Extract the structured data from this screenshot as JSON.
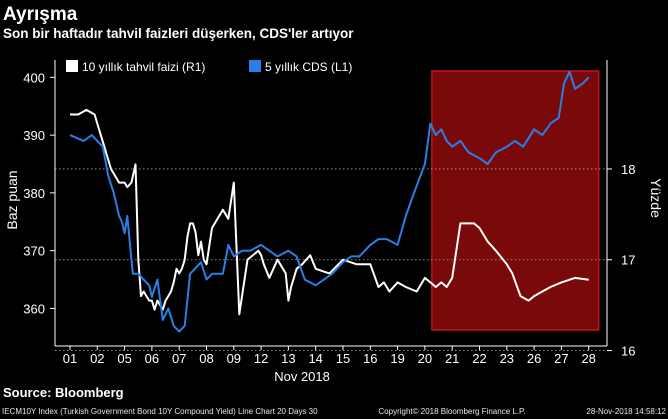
{
  "title": "Ayrışma",
  "subtitle": "Son bir haftadır tahvil faizleri düşerken, CDS'ler artıyor",
  "source": "Source: Bloomberg",
  "footer": {
    "left": "IECM10Y Index (Turkish Government Bond 10Y Compound Yield) Line Chart 20 Days 30",
    "middle": "Copyright© 2018 Bloomberg Finance L.P.",
    "right": "28-Nov-2018 14:58:12"
  },
  "colors": {
    "background": "#000000",
    "yield_line": "#ffffff",
    "cds_line": "#2a7fe6",
    "highlight_fill": "#7a0a0a",
    "highlight_border": "#c0151c"
  },
  "chart_data": {
    "type": "line",
    "title": "",
    "xlabel": "Nov 2018",
    "left_axis": {
      "label": "Baz puan",
      "ylim": [
        353.5,
        403
      ],
      "ticks": [
        360,
        370,
        380,
        390,
        400
      ]
    },
    "right_axis": {
      "label": "Yüzde",
      "ylim": [
        16.05,
        19.2
      ],
      "ticks": [
        16,
        17,
        18
      ]
    },
    "categories": [
      "01",
      "02",
      "05",
      "06",
      "07",
      "08",
      "09",
      "12",
      "13",
      "14",
      "15",
      "16",
      "19",
      "20",
      "21",
      "22",
      "23",
      "26",
      "27",
      "28"
    ],
    "legend": [
      "10 yıllık tahvil faizi (R1)",
      "5 yıllık CDS (L1)"
    ],
    "legend_position": "top-left",
    "highlight": {
      "from": "20",
      "to": "28"
    },
    "series": [
      {
        "name": "10 yıllık tahvil faizi (R1)",
        "axis": "right",
        "color": "#ffffff",
        "x": [
          0,
          0.3,
          0.6,
          0.9,
          1.0,
          1.2,
          1.5,
          1.8,
          2.0,
          2.1,
          2.25,
          2.4,
          2.5,
          2.6,
          2.7,
          2.8,
          2.9,
          3.0,
          3.1,
          3.2,
          3.3,
          3.4,
          3.5,
          3.6,
          3.7,
          3.8,
          3.9,
          4.0,
          4.1,
          4.2,
          4.3,
          4.4,
          4.5,
          4.6,
          4.7,
          4.8,
          4.9,
          5.0,
          5.2,
          5.4,
          5.6,
          5.7,
          5.8,
          6.0,
          6.2,
          6.5,
          6.9,
          7.0,
          7.1,
          7.3,
          7.6,
          7.9,
          8.0,
          8.1,
          8.3,
          8.5,
          8.8,
          9.0,
          9.5,
          10.0,
          10.5,
          11.0,
          11.3,
          11.5,
          11.7,
          12.0,
          12.3,
          12.7,
          12.9,
          13.0,
          13.2,
          13.4,
          13.6,
          13.8,
          14.0,
          14.3,
          14.6,
          14.8,
          15.0,
          15.3,
          15.6,
          16.0,
          16.2,
          16.5,
          16.8,
          17.0,
          17.3,
          17.6,
          18.0,
          18.5,
          19.0
        ],
        "y": [
          18.6,
          18.6,
          18.65,
          18.6,
          18.5,
          18.3,
          18.0,
          17.85,
          17.85,
          17.8,
          17.85,
          18.05,
          17.0,
          16.6,
          16.65,
          16.6,
          16.55,
          16.55,
          16.45,
          16.55,
          16.5,
          16.45,
          16.55,
          16.6,
          16.65,
          16.75,
          16.9,
          16.85,
          16.9,
          17.0,
          17.25,
          17.4,
          17.4,
          17.3,
          17.05,
          17.2,
          17.0,
          16.95,
          17.35,
          17.45,
          17.55,
          17.5,
          17.45,
          17.85,
          16.4,
          17.0,
          17.1,
          17.05,
          16.95,
          16.8,
          17.0,
          16.85,
          16.55,
          16.7,
          16.9,
          16.95,
          17.05,
          16.9,
          16.85,
          17.0,
          16.95,
          16.95,
          16.7,
          16.75,
          16.65,
          16.75,
          16.7,
          16.65,
          16.75,
          16.8,
          16.75,
          16.7,
          16.75,
          16.7,
          16.8,
          17.4,
          17.4,
          17.4,
          17.35,
          17.2,
          17.1,
          16.95,
          16.85,
          16.6,
          16.55,
          16.6,
          16.65,
          16.7,
          16.75,
          16.8,
          16.78
        ]
      },
      {
        "name": "5 yıllık CDS (L1)",
        "axis": "left",
        "color": "#2a7fe6",
        "x": [
          0,
          0.5,
          0.8,
          1.0,
          1.2,
          1.4,
          1.6,
          1.8,
          1.9,
          2.0,
          2.1,
          2.3,
          2.5,
          2.7,
          2.9,
          3.0,
          3.2,
          3.4,
          3.6,
          3.8,
          4.0,
          4.2,
          4.4,
          4.6,
          4.8,
          5.0,
          5.2,
          5.4,
          5.6,
          5.8,
          6.0,
          6.3,
          6.6,
          7.0,
          7.3,
          7.6,
          8.0,
          8.3,
          8.6,
          9.0,
          9.3,
          9.6,
          10.0,
          10.3,
          10.6,
          11.0,
          11.3,
          11.6,
          12.0,
          12.3,
          12.6,
          13.0,
          13.2,
          13.4,
          13.6,
          13.8,
          14.0,
          14.3,
          14.6,
          15.0,
          15.3,
          15.6,
          16.0,
          16.3,
          16.6,
          17.0,
          17.3,
          17.6,
          17.9,
          18.1,
          18.3,
          18.5,
          18.8,
          19.0
        ],
        "y": [
          390,
          389,
          390,
          389,
          388,
          383,
          380,
          376,
          375,
          373,
          376,
          366,
          366,
          365,
          364,
          362,
          365,
          358,
          360,
          357,
          356,
          357,
          366,
          367,
          368,
          365,
          366,
          366,
          366,
          371,
          369,
          370,
          370,
          371,
          370,
          369,
          370,
          369,
          365,
          364,
          365,
          366,
          368,
          369,
          369,
          371,
          372,
          372,
          371,
          376,
          380,
          385,
          392,
          390,
          391,
          389,
          388,
          389,
          387,
          386,
          385,
          387,
          388,
          389,
          388,
          391,
          390,
          392,
          393,
          399,
          401,
          398,
          399,
          400
        ]
      }
    ]
  }
}
